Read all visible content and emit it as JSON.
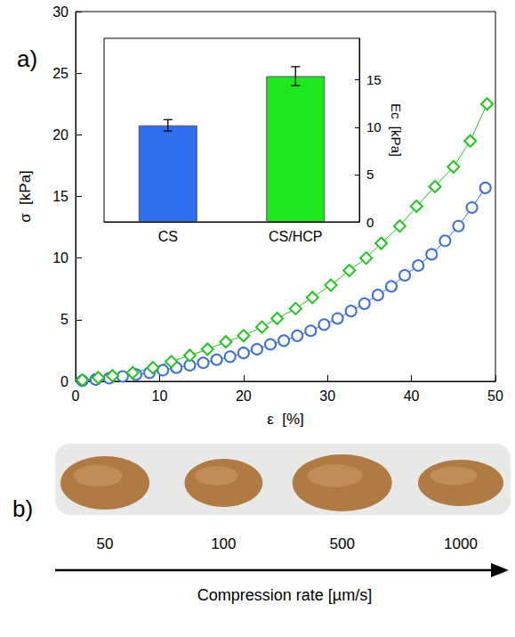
{
  "chart_data": [
    {
      "type": "line",
      "title": "a)",
      "xlabel": "ε  [%]",
      "ylabel": "σ  [kPa]",
      "xlim": [
        0,
        50
      ],
      "xticks": [
        0,
        10,
        20,
        30,
        40,
        50
      ],
      "ylim": [
        0,
        30
      ],
      "yticks": [
        0,
        5,
        10,
        15,
        20,
        25,
        30
      ],
      "grid": false,
      "series": [
        {
          "color": "#3c6fd6",
          "marker": "circle",
          "x": [
            0.8,
            2.4,
            4.0,
            5.6,
            7.2,
            8.8,
            10.4,
            12.0,
            13.6,
            15.2,
            16.8,
            18.4,
            20.0,
            21.6,
            23.2,
            24.8,
            26.4,
            28.0,
            29.6,
            31.2,
            32.8,
            34.4,
            36.0,
            37.6,
            39.2,
            40.8,
            42.4,
            44.0,
            45.6,
            47.2,
            48.8
          ],
          "values": [
            0.05,
            0.15,
            0.25,
            0.4,
            0.55,
            0.7,
            0.9,
            1.1,
            1.3,
            1.5,
            1.75,
            2.0,
            2.3,
            2.6,
            3.0,
            3.3,
            3.7,
            4.1,
            4.6,
            5.1,
            5.7,
            6.3,
            7.0,
            7.7,
            8.6,
            9.4,
            10.3,
            11.4,
            12.6,
            14.1,
            15.7
          ]
        },
        {
          "color": "#22c322",
          "marker": "diamond",
          "x": [
            0.8,
            2.7,
            4.4,
            6.8,
            9.2,
            11.4,
            13.6,
            15.7,
            17.9,
            20.0,
            22.2,
            24.0,
            26.2,
            28.2,
            30.4,
            32.6,
            34.6,
            36.4,
            38.6,
            40.6,
            42.8,
            45.0,
            47.0,
            49.0
          ],
          "values": [
            0.1,
            0.3,
            0.45,
            0.7,
            1.1,
            1.6,
            2.1,
            2.6,
            3.2,
            3.7,
            4.4,
            5.1,
            5.9,
            6.8,
            7.8,
            9.0,
            10.0,
            11.2,
            12.6,
            14.2,
            15.8,
            17.4,
            19.5,
            22.5
          ]
        }
      ]
    },
    {
      "type": "bar",
      "ylabel": "Ec  [kPa]",
      "categories": [
        "CS",
        "CS/HCP"
      ],
      "values": [
        10.2,
        15.4
      ],
      "errors": [
        0.6,
        1.0
      ],
      "colors": [
        "#2f6ff0",
        "#1fe61f"
      ],
      "ylim": [
        0,
        19.4
      ],
      "yticks": [
        0,
        5,
        10,
        15
      ],
      "grid": false
    }
  ],
  "panel_b": {
    "label": "b)",
    "photo_labels": [
      50,
      100,
      500,
      1000
    ],
    "axis_title": "Compression rate [µm/s]"
  }
}
